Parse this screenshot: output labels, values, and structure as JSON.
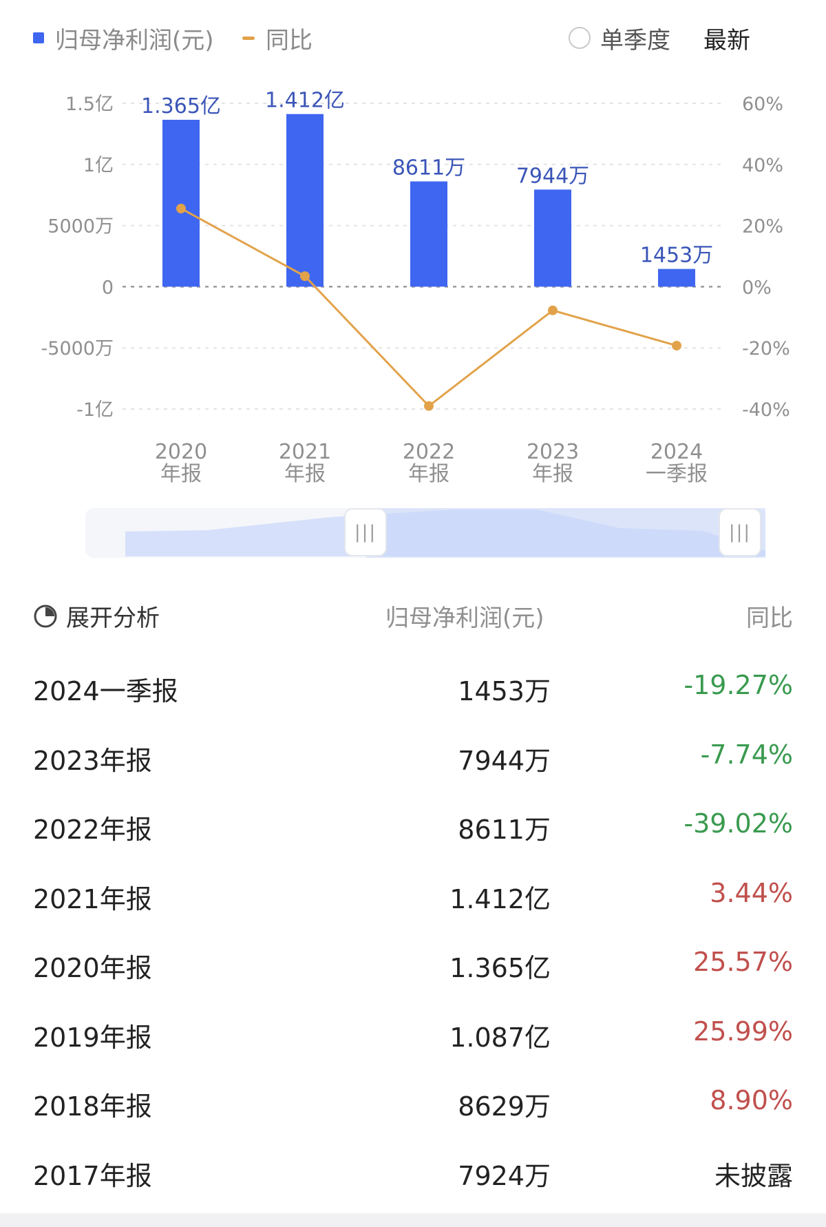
{
  "legend": {
    "profit_label": "归母净利润(元)",
    "yoy_label": "同比",
    "single_quarter_label": "单季度",
    "latest_label": "最新"
  },
  "colors": {
    "bar": "#3f66f0",
    "line": "#e2a24a",
    "positive": "#c0504d",
    "negative": "#3a9a4f"
  },
  "chart_data": {
    "type": "bar",
    "categories": [
      "2020 年报",
      "2021 年报",
      "2022 年报",
      "2023 年报",
      "2024 一季报"
    ],
    "category_lines": [
      [
        "2020",
        "年报"
      ],
      [
        "2021",
        "年报"
      ],
      [
        "2022",
        "年报"
      ],
      [
        "2023",
        "年报"
      ],
      [
        "2024",
        "一季报"
      ]
    ],
    "series": [
      {
        "name": "归母净利润(元)",
        "type": "bar",
        "axis": "left",
        "values": [
          136500000,
          141200000,
          86110000,
          79440000,
          14530000
        ],
        "labels": [
          "1.365亿",
          "1.412亿",
          "8611万",
          "7944万",
          "1453万"
        ]
      },
      {
        "name": "同比",
        "type": "line",
        "axis": "right",
        "values": [
          25.57,
          3.44,
          -39.02,
          -7.74,
          -19.27
        ]
      }
    ],
    "left_axis": {
      "ylim": [
        -100000000,
        150000000
      ],
      "ticks": [
        150000000,
        100000000,
        50000000,
        0,
        -50000000,
        -100000000
      ],
      "tick_labels": [
        "1.5亿",
        "1亿",
        "5000万",
        "0",
        "-5000万",
        "-1亿"
      ]
    },
    "right_axis": {
      "ylim": [
        -40,
        60
      ],
      "ticks": [
        60,
        40,
        20,
        0,
        -20,
        -40
      ],
      "tick_labels": [
        "60%",
        "40%",
        "20%",
        "0%",
        "-20%",
        "-40%"
      ]
    },
    "grid": true
  },
  "table": {
    "header": {
      "analysis": "展开分析",
      "profit": "归母净利润(元)",
      "yoy": "同比"
    },
    "rows": [
      {
        "period": "2024一季报",
        "value": "1453万",
        "yoy": "-19.27%",
        "trend": "negative"
      },
      {
        "period": "2023年报",
        "value": "7944万",
        "yoy": "-7.74%",
        "trend": "negative"
      },
      {
        "period": "2022年报",
        "value": "8611万",
        "yoy": "-39.02%",
        "trend": "negative"
      },
      {
        "period": "2021年报",
        "value": "1.412亿",
        "yoy": "3.44%",
        "trend": "positive"
      },
      {
        "period": "2020年报",
        "value": "1.365亿",
        "yoy": "25.57%",
        "trend": "positive"
      },
      {
        "period": "2019年报",
        "value": "1.087亿",
        "yoy": "25.99%",
        "trend": "positive"
      },
      {
        "period": "2018年报",
        "value": "8629万",
        "yoy": "8.90%",
        "trend": "positive"
      },
      {
        "period": "2017年报",
        "value": "7924万",
        "yoy": "未披露",
        "trend": "none"
      }
    ]
  }
}
